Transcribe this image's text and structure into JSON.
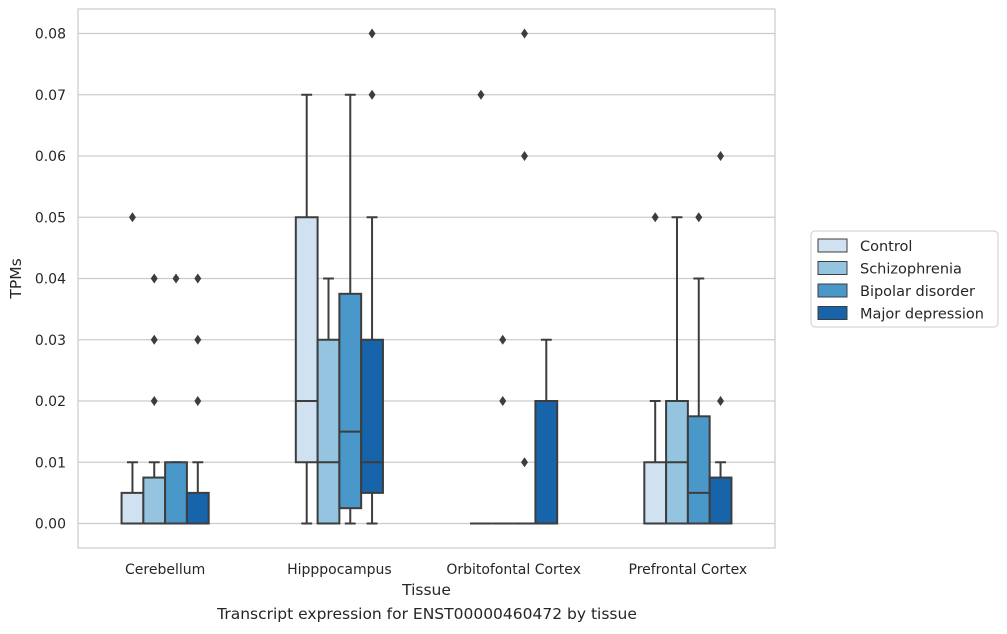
{
  "caption": "Transcript expression for ENST00000460472 by tissue",
  "chart_data": {
    "type": "box",
    "xlabel": "Tissue",
    "ylabel": "TPMs",
    "ylim": [
      -0.004,
      0.084
    ],
    "yticks": [
      0.0,
      0.01,
      0.02,
      0.03,
      0.04,
      0.05,
      0.06,
      0.07,
      0.08
    ],
    "ytick_labels": [
      "0.00",
      "0.01",
      "0.02",
      "0.03",
      "0.04",
      "0.05",
      "0.06",
      "0.07",
      "0.08"
    ],
    "grid": "horizontal",
    "legend_position": "right",
    "categories": [
      "Cerebellum",
      "Hipppocampus",
      "Orbitofontal Cortex",
      "Prefrontal Cortex"
    ],
    "series": [
      {
        "name": "Control",
        "color": "#d0e1f2",
        "boxes": [
          {
            "whislo": 0.0,
            "q1": 0.0,
            "med": 0.0,
            "q3": 0.005,
            "whishi": 0.01,
            "fliers": [
              0.05
            ]
          },
          {
            "whislo": 0.0,
            "q1": 0.01,
            "med": 0.02,
            "q3": 0.05,
            "whishi": 0.07,
            "fliers": []
          },
          {
            "whislo": 0.0,
            "q1": 0.0,
            "med": 0.0,
            "q3": 0.0,
            "whishi": 0.0,
            "fliers": [
              0.07
            ]
          },
          {
            "whislo": 0.0,
            "q1": 0.0,
            "med": 0.0,
            "q3": 0.01,
            "whishi": 0.02,
            "fliers": [
              0.05
            ]
          }
        ]
      },
      {
        "name": "Schizophrenia",
        "color": "#94c4df",
        "boxes": [
          {
            "whislo": 0.0,
            "q1": 0.0,
            "med": 0.0,
            "q3": 0.0075,
            "whishi": 0.01,
            "fliers": [
              0.02,
              0.03,
              0.04
            ]
          },
          {
            "whislo": 0.0,
            "q1": 0.0,
            "med": 0.01,
            "q3": 0.03,
            "whishi": 0.04,
            "fliers": []
          },
          {
            "whislo": 0.0,
            "q1": 0.0,
            "med": 0.0,
            "q3": 0.0,
            "whishi": 0.0,
            "fliers": [
              0.02,
              0.03
            ]
          },
          {
            "whislo": 0.0,
            "q1": 0.0,
            "med": 0.01,
            "q3": 0.02,
            "whishi": 0.05,
            "fliers": []
          }
        ]
      },
      {
        "name": "Bipolar disorder",
        "color": "#4a98c9",
        "boxes": [
          {
            "whislo": 0.0,
            "q1": 0.0,
            "med": 0.0,
            "q3": 0.01,
            "whishi": 0.01,
            "fliers": [
              0.04
            ]
          },
          {
            "whislo": 0.0,
            "q1": 0.0025,
            "med": 0.015,
            "q3": 0.0375,
            "whishi": 0.07,
            "fliers": []
          },
          {
            "whislo": 0.0,
            "q1": 0.0,
            "med": 0.0,
            "q3": 0.0,
            "whishi": 0.0,
            "fliers": [
              0.01,
              0.06,
              0.08
            ]
          },
          {
            "whislo": 0.0,
            "q1": 0.0,
            "med": 0.005,
            "q3": 0.0175,
            "whishi": 0.04,
            "fliers": [
              0.05
            ]
          }
        ]
      },
      {
        "name": "Major depression",
        "color": "#1764ab",
        "boxes": [
          {
            "whislo": 0.0,
            "q1": 0.0,
            "med": 0.0,
            "q3": 0.005,
            "whishi": 0.01,
            "fliers": [
              0.02,
              0.03,
              0.04
            ]
          },
          {
            "whislo": 0.0,
            "q1": 0.005,
            "med": 0.01,
            "q3": 0.03,
            "whishi": 0.05,
            "fliers": [
              0.07,
              0.08
            ]
          },
          {
            "whislo": 0.0,
            "q1": 0.0,
            "med": 0.0,
            "q3": 0.02,
            "whishi": 0.03,
            "fliers": []
          },
          {
            "whislo": 0.0,
            "q1": 0.0,
            "med": 0.0,
            "q3": 0.0075,
            "whishi": 0.01,
            "fliers": [
              0.02,
              0.06
            ]
          }
        ]
      }
    ]
  }
}
